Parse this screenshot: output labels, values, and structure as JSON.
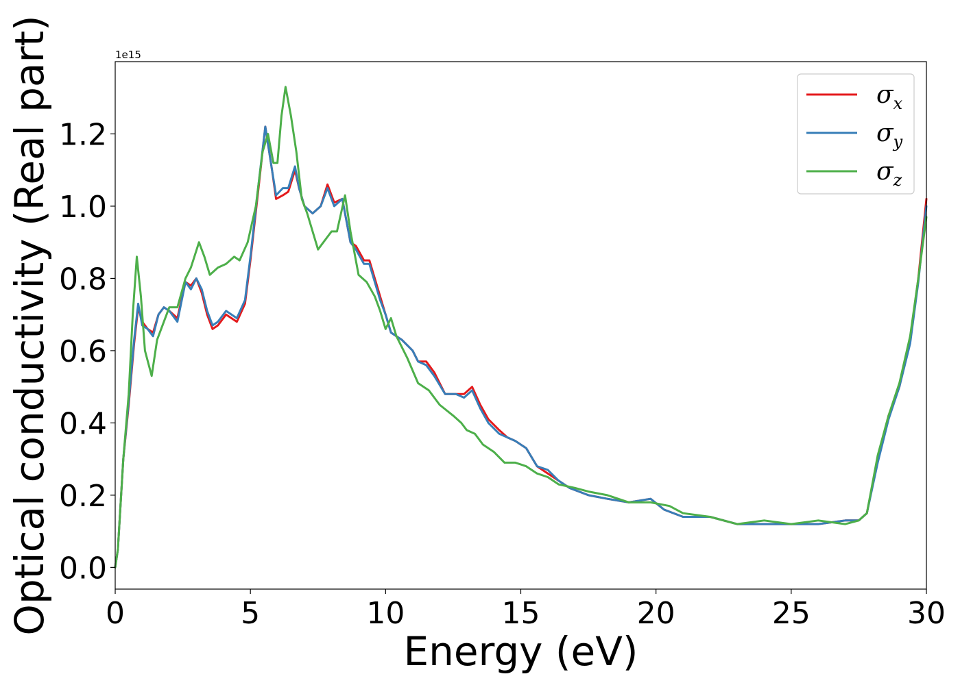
{
  "chart_data": {
    "type": "line",
    "title": "",
    "xlabel": "Energy (eV)",
    "ylabel": "Optical conductivity (Real part)",
    "y_offset_label": "1e15",
    "xlim": [
      0,
      30
    ],
    "ylim": [
      -0.06,
      1.4
    ],
    "xticks": [
      0,
      5,
      10,
      15,
      20,
      25,
      30
    ],
    "xtick_labels": [
      "0",
      "5",
      "10",
      "15",
      "20",
      "25",
      "30"
    ],
    "yticks": [
      0.0,
      0.2,
      0.4,
      0.6,
      0.8,
      1.0,
      1.2
    ],
    "ytick_labels": [
      "0.0",
      "0.2",
      "0.4",
      "0.6",
      "0.8",
      "1.0",
      "1.2"
    ],
    "grid": false,
    "legend_position": "top-right",
    "series": [
      {
        "name": "σx",
        "legend_base": "σ",
        "legend_sub": "x",
        "color": "#e41a1c",
        "points": [
          [
            0,
            0
          ],
          [
            0.1,
            0.05
          ],
          [
            0.3,
            0.3
          ],
          [
            0.5,
            0.45
          ],
          [
            0.7,
            0.62
          ],
          [
            0.85,
            0.72
          ],
          [
            1.0,
            0.68
          ],
          [
            1.2,
            0.66
          ],
          [
            1.4,
            0.65
          ],
          [
            1.6,
            0.7
          ],
          [
            1.8,
            0.72
          ],
          [
            2.0,
            0.71
          ],
          [
            2.3,
            0.69
          ],
          [
            2.6,
            0.79
          ],
          [
            2.8,
            0.78
          ],
          [
            3.0,
            0.8
          ],
          [
            3.2,
            0.76
          ],
          [
            3.4,
            0.7
          ],
          [
            3.6,
            0.66
          ],
          [
            3.8,
            0.67
          ],
          [
            4.1,
            0.7
          ],
          [
            4.5,
            0.68
          ],
          [
            4.8,
            0.73
          ],
          [
            5.0,
            0.85
          ],
          [
            5.3,
            1.05
          ],
          [
            5.55,
            1.22
          ],
          [
            5.8,
            1.1
          ],
          [
            5.95,
            1.02
          ],
          [
            6.2,
            1.03
          ],
          [
            6.4,
            1.04
          ],
          [
            6.65,
            1.1
          ],
          [
            6.8,
            1.05
          ],
          [
            7.0,
            1.0
          ],
          [
            7.3,
            0.98
          ],
          [
            7.6,
            1.0
          ],
          [
            7.85,
            1.06
          ],
          [
            8.1,
            1.01
          ],
          [
            8.4,
            1.02
          ],
          [
            8.7,
            0.9
          ],
          [
            8.9,
            0.89
          ],
          [
            9.2,
            0.85
          ],
          [
            9.4,
            0.85
          ],
          [
            9.8,
            0.75
          ],
          [
            10.0,
            0.7
          ],
          [
            10.2,
            0.65
          ],
          [
            10.6,
            0.63
          ],
          [
            11.0,
            0.6
          ],
          [
            11.2,
            0.57
          ],
          [
            11.5,
            0.57
          ],
          [
            11.8,
            0.54
          ],
          [
            12.2,
            0.48
          ],
          [
            12.6,
            0.48
          ],
          [
            12.9,
            0.48
          ],
          [
            13.2,
            0.5
          ],
          [
            13.5,
            0.45
          ],
          [
            13.8,
            0.41
          ],
          [
            14.2,
            0.38
          ],
          [
            14.5,
            0.36
          ],
          [
            14.8,
            0.35
          ],
          [
            15.2,
            0.33
          ],
          [
            15.6,
            0.28
          ],
          [
            16.0,
            0.26
          ],
          [
            16.4,
            0.24
          ],
          [
            16.8,
            0.22
          ],
          [
            17.5,
            0.2
          ],
          [
            18.2,
            0.19
          ],
          [
            19.0,
            0.18
          ],
          [
            19.8,
            0.19
          ],
          [
            20.3,
            0.16
          ],
          [
            21.0,
            0.14
          ],
          [
            22.0,
            0.14
          ],
          [
            23.0,
            0.12
          ],
          [
            24.0,
            0.12
          ],
          [
            25.0,
            0.12
          ],
          [
            26.0,
            0.12
          ],
          [
            27.0,
            0.13
          ],
          [
            27.5,
            0.13
          ],
          [
            27.8,
            0.15
          ],
          [
            28.2,
            0.3
          ],
          [
            28.6,
            0.42
          ],
          [
            29.0,
            0.5
          ],
          [
            29.4,
            0.63
          ],
          [
            29.7,
            0.8
          ],
          [
            30.0,
            1.02
          ]
        ]
      },
      {
        "name": "σy",
        "legend_base": "σ",
        "legend_sub": "y",
        "color": "#377eb8",
        "points": [
          [
            0,
            0
          ],
          [
            0.1,
            0.05
          ],
          [
            0.3,
            0.3
          ],
          [
            0.5,
            0.46
          ],
          [
            0.7,
            0.63
          ],
          [
            0.85,
            0.73
          ],
          [
            1.0,
            0.67
          ],
          [
            1.2,
            0.66
          ],
          [
            1.4,
            0.64
          ],
          [
            1.6,
            0.7
          ],
          [
            1.8,
            0.72
          ],
          [
            2.0,
            0.71
          ],
          [
            2.3,
            0.68
          ],
          [
            2.6,
            0.79
          ],
          [
            2.8,
            0.77
          ],
          [
            3.0,
            0.8
          ],
          [
            3.2,
            0.77
          ],
          [
            3.4,
            0.71
          ],
          [
            3.6,
            0.67
          ],
          [
            3.8,
            0.68
          ],
          [
            4.1,
            0.71
          ],
          [
            4.5,
            0.69
          ],
          [
            4.8,
            0.74
          ],
          [
            5.0,
            0.86
          ],
          [
            5.3,
            1.06
          ],
          [
            5.55,
            1.22
          ],
          [
            5.8,
            1.1
          ],
          [
            5.95,
            1.03
          ],
          [
            6.2,
            1.05
          ],
          [
            6.4,
            1.05
          ],
          [
            6.65,
            1.11
          ],
          [
            6.8,
            1.05
          ],
          [
            7.0,
            1.0
          ],
          [
            7.3,
            0.98
          ],
          [
            7.6,
            1.0
          ],
          [
            7.85,
            1.05
          ],
          [
            8.1,
            1.0
          ],
          [
            8.4,
            1.02
          ],
          [
            8.7,
            0.9
          ],
          [
            8.9,
            0.88
          ],
          [
            9.2,
            0.84
          ],
          [
            9.4,
            0.84
          ],
          [
            9.8,
            0.74
          ],
          [
            10.0,
            0.7
          ],
          [
            10.2,
            0.65
          ],
          [
            10.6,
            0.63
          ],
          [
            11.0,
            0.6
          ],
          [
            11.2,
            0.57
          ],
          [
            11.5,
            0.56
          ],
          [
            11.8,
            0.53
          ],
          [
            12.2,
            0.48
          ],
          [
            12.6,
            0.48
          ],
          [
            12.9,
            0.47
          ],
          [
            13.2,
            0.49
          ],
          [
            13.5,
            0.44
          ],
          [
            13.8,
            0.4
          ],
          [
            14.2,
            0.37
          ],
          [
            14.5,
            0.36
          ],
          [
            14.8,
            0.35
          ],
          [
            15.2,
            0.33
          ],
          [
            15.6,
            0.28
          ],
          [
            16.0,
            0.27
          ],
          [
            16.4,
            0.24
          ],
          [
            16.8,
            0.22
          ],
          [
            17.5,
            0.2
          ],
          [
            18.2,
            0.19
          ],
          [
            19.0,
            0.18
          ],
          [
            19.8,
            0.19
          ],
          [
            20.3,
            0.16
          ],
          [
            21.0,
            0.14
          ],
          [
            22.0,
            0.14
          ],
          [
            23.0,
            0.12
          ],
          [
            24.0,
            0.12
          ],
          [
            25.0,
            0.12
          ],
          [
            26.0,
            0.12
          ],
          [
            27.0,
            0.13
          ],
          [
            27.5,
            0.13
          ],
          [
            27.8,
            0.15
          ],
          [
            28.2,
            0.29
          ],
          [
            28.6,
            0.41
          ],
          [
            29.0,
            0.5
          ],
          [
            29.4,
            0.62
          ],
          [
            29.7,
            0.79
          ],
          [
            30.0,
            1.0
          ]
        ]
      },
      {
        "name": "σz",
        "legend_base": "σ",
        "legend_sub": "z",
        "color": "#4daf4a",
        "points": [
          [
            0,
            0
          ],
          [
            0.1,
            0.05
          ],
          [
            0.3,
            0.3
          ],
          [
            0.5,
            0.48
          ],
          [
            0.65,
            0.7
          ],
          [
            0.8,
            0.86
          ],
          [
            0.95,
            0.75
          ],
          [
            1.1,
            0.6
          ],
          [
            1.35,
            0.53
          ],
          [
            1.55,
            0.63
          ],
          [
            1.8,
            0.68
          ],
          [
            2.0,
            0.72
          ],
          [
            2.3,
            0.72
          ],
          [
            2.6,
            0.8
          ],
          [
            2.8,
            0.83
          ],
          [
            3.1,
            0.9
          ],
          [
            3.3,
            0.86
          ],
          [
            3.5,
            0.81
          ],
          [
            3.8,
            0.83
          ],
          [
            4.1,
            0.84
          ],
          [
            4.4,
            0.86
          ],
          [
            4.6,
            0.85
          ],
          [
            4.9,
            0.9
          ],
          [
            5.2,
            1.0
          ],
          [
            5.45,
            1.15
          ],
          [
            5.65,
            1.2
          ],
          [
            5.85,
            1.12
          ],
          [
            6.0,
            1.12
          ],
          [
            6.15,
            1.25
          ],
          [
            6.3,
            1.33
          ],
          [
            6.5,
            1.25
          ],
          [
            6.7,
            1.15
          ],
          [
            6.9,
            1.02
          ],
          [
            7.1,
            0.98
          ],
          [
            7.5,
            0.88
          ],
          [
            7.8,
            0.91
          ],
          [
            8.0,
            0.93
          ],
          [
            8.2,
            0.93
          ],
          [
            8.5,
            1.03
          ],
          [
            8.7,
            0.93
          ],
          [
            9.0,
            0.81
          ],
          [
            9.3,
            0.79
          ],
          [
            9.6,
            0.75
          ],
          [
            9.8,
            0.71
          ],
          [
            10.0,
            0.66
          ],
          [
            10.2,
            0.69
          ],
          [
            10.4,
            0.64
          ],
          [
            10.8,
            0.58
          ],
          [
            11.2,
            0.51
          ],
          [
            11.6,
            0.49
          ],
          [
            12.0,
            0.45
          ],
          [
            12.5,
            0.42
          ],
          [
            12.8,
            0.4
          ],
          [
            13.0,
            0.38
          ],
          [
            13.3,
            0.37
          ],
          [
            13.6,
            0.34
          ],
          [
            14.0,
            0.32
          ],
          [
            14.4,
            0.29
          ],
          [
            14.8,
            0.29
          ],
          [
            15.2,
            0.28
          ],
          [
            15.6,
            0.26
          ],
          [
            16.0,
            0.25
          ],
          [
            16.4,
            0.23
          ],
          [
            17.0,
            0.22
          ],
          [
            17.5,
            0.21
          ],
          [
            18.2,
            0.2
          ],
          [
            19.0,
            0.18
          ],
          [
            19.8,
            0.18
          ],
          [
            20.5,
            0.17
          ],
          [
            21.0,
            0.15
          ],
          [
            22.0,
            0.14
          ],
          [
            23.0,
            0.12
          ],
          [
            24.0,
            0.13
          ],
          [
            25.0,
            0.12
          ],
          [
            26.0,
            0.13
          ],
          [
            27.0,
            0.12
          ],
          [
            27.5,
            0.13
          ],
          [
            27.8,
            0.15
          ],
          [
            28.2,
            0.31
          ],
          [
            28.6,
            0.42
          ],
          [
            29.0,
            0.51
          ],
          [
            29.4,
            0.64
          ],
          [
            29.7,
            0.8
          ],
          [
            30.0,
            0.97
          ]
        ]
      }
    ]
  }
}
